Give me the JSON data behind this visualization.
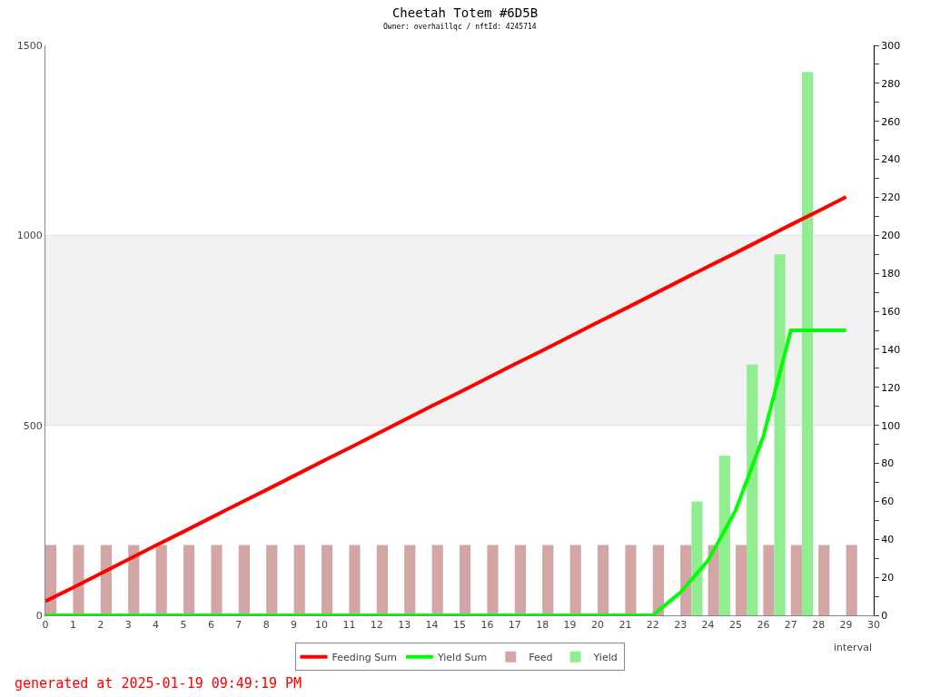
{
  "chart_data": {
    "type": "line",
    "title": "Cheetah Totem #6D5B",
    "subtitle": "Owner: overhaillqc / nftId: 4245714",
    "xlabel": "interval",
    "x": [
      0,
      1,
      2,
      3,
      4,
      5,
      6,
      7,
      8,
      9,
      10,
      11,
      12,
      13,
      14,
      15,
      16,
      17,
      18,
      19,
      20,
      21,
      22,
      23,
      24,
      25,
      26,
      27,
      28,
      29
    ],
    "series": [
      {
        "name": "Feeding Sum",
        "color": "#ff0000",
        "values": [
          37,
          73,
          110,
          147,
          184,
          220,
          257,
          294,
          330,
          367,
          404,
          440,
          477,
          514,
          551,
          587,
          624,
          661,
          697,
          734,
          771,
          807,
          844,
          881,
          918,
          954,
          991,
          1028,
          1064,
          1101
        ]
      },
      {
        "name": "Yield Sum",
        "color": "#00ff00",
        "values": [
          0,
          0,
          0,
          0,
          0,
          0,
          0,
          0,
          0,
          0,
          0,
          0,
          0,
          0,
          0,
          0,
          0,
          0,
          0,
          0,
          0,
          0,
          0,
          60,
          144,
          276,
          470,
          750,
          750,
          750
        ]
      },
      {
        "name": "Feed",
        "type": "bar",
        "axis": "y2",
        "x": [
          0.2,
          1.2,
          2.2,
          3.2,
          4.2,
          5.2,
          6.2,
          7.2,
          8.2,
          9.2,
          10.2,
          11.2,
          12.2,
          13.2,
          14.2,
          15.2,
          16.2,
          17.2,
          18.2,
          19.2,
          20.2,
          21.2,
          22.2,
          23.2,
          24.2,
          25.2,
          26.2,
          27.2,
          28.2,
          29.2
        ],
        "color": "#d4a5a5",
        "values": [
          37,
          37,
          37,
          37,
          37,
          37,
          37,
          37,
          37,
          37,
          37,
          37,
          37,
          37,
          37,
          37,
          37,
          37,
          37,
          37,
          37,
          37,
          37,
          37,
          37,
          37,
          37,
          37,
          37,
          37
        ]
      },
      {
        "name": "Yield",
        "type": "bar",
        "axis": "y2",
        "color": "#90ee90",
        "x": [
          23.6,
          24.6,
          25.6,
          26.6,
          27.6
        ],
        "values": [
          60,
          84,
          132,
          190,
          286
        ]
      }
    ],
    "xlim": [
      0,
      30
    ],
    "xticks": [
      0,
      1,
      2,
      3,
      4,
      5,
      6,
      7,
      8,
      9,
      10,
      11,
      12,
      13,
      14,
      15,
      16,
      17,
      18,
      19,
      20,
      21,
      22,
      23,
      24,
      25,
      26,
      27,
      28,
      29,
      30
    ],
    "ylim": [
      0,
      1500
    ],
    "yticks": [
      0,
      500,
      1000,
      1500
    ],
    "y2lim": [
      0,
      300
    ],
    "y2ticks": [
      0,
      {
        "value": 10,
        "label": null
      },
      20,
      {
        "value": 30,
        "label": null
      },
      40,
      {
        "value": 50,
        "label": null
      },
      60,
      {
        "value": 70,
        "label": null
      },
      80,
      {
        "value": 90,
        "label": null
      },
      100,
      {
        "value": 110,
        "label": null
      },
      120,
      {
        "value": 130,
        "label": null
      },
      140,
      {
        "value": 150,
        "label": null
      },
      160,
      {
        "value": 170,
        "label": null
      },
      180,
      {
        "value": 190,
        "label": null
      },
      200,
      {
        "value": 210,
        "label": null
      },
      220,
      {
        "value": 230,
        "label": null
      },
      240,
      {
        "value": 250,
        "label": null
      },
      260,
      {
        "value": 270,
        "label": null
      },
      280,
      {
        "value": 290,
        "label": null
      },
      300
    ],
    "bands": [
      {
        "axis": "y",
        "from": 500,
        "to": 1000,
        "color": "#f2f2f2"
      }
    ],
    "legend": "bottom",
    "grid": false,
    "marker": "none",
    "annotations": [
      "generated at 2025-01-19 09:49:19 PM"
    ]
  }
}
